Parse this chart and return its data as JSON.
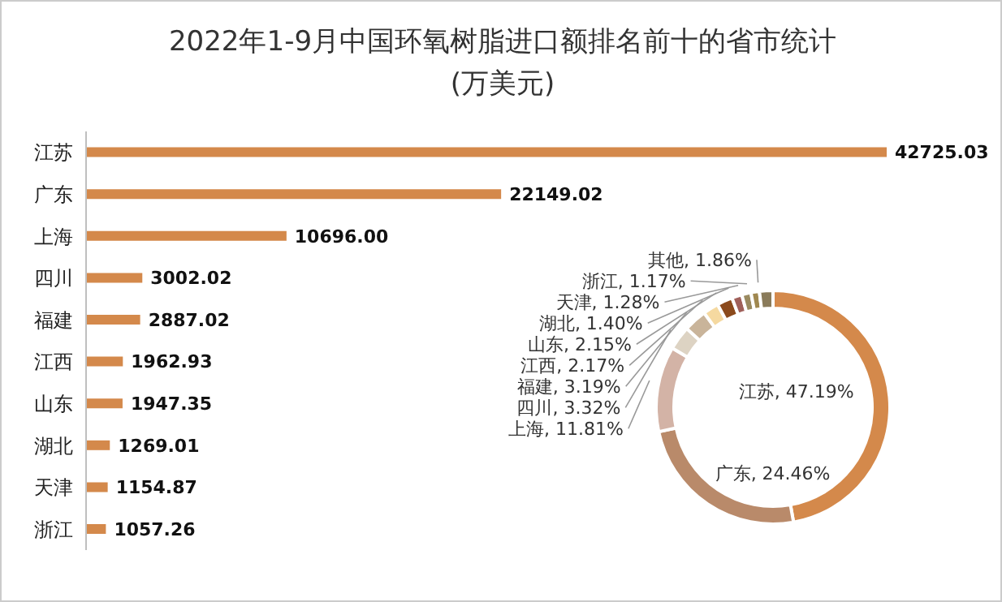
{
  "chart_data": [
    {
      "type": "bar",
      "orientation": "horizontal",
      "title": "2022年1-9月中国环氧树脂进口额排名前十的省市统计",
      "subtitle": "(万美元)",
      "categories": [
        "江苏",
        "广东",
        "上海",
        "四川",
        "福建",
        "江西",
        "山东",
        "湖北",
        "天津",
        "浙江"
      ],
      "values": [
        42725.03,
        22149.02,
        10696.0,
        3002.02,
        2887.02,
        1962.93,
        1947.35,
        1269.01,
        1154.87,
        1057.26
      ],
      "value_labels": [
        "42725.03",
        "22149.02",
        "10696.00",
        "3002.02",
        "2887.02",
        "1962.93",
        "1947.35",
        "1269.01",
        "1154.87",
        "1057.26"
      ],
      "color": "#d4894b"
    },
    {
      "type": "donut",
      "categories": [
        "江苏",
        "广东",
        "上海",
        "四川",
        "福建",
        "江西",
        "山东",
        "湖北",
        "天津",
        "浙江",
        "其他"
      ],
      "values": [
        47.19,
        24.46,
        11.81,
        3.32,
        3.19,
        2.17,
        2.15,
        1.4,
        1.28,
        1.17,
        1.86
      ],
      "value_labels": [
        "47.19%",
        "24.46%",
        "11.81%",
        "3.32%",
        "3.19%",
        "2.17%",
        "2.15%",
        "1.40%",
        "1.28%",
        "1.17%",
        "1.86%"
      ],
      "colors": [
        "#d4894b",
        "#b98a6a",
        "#d3b3a6",
        "#ddd3c3",
        "#c9b49a",
        "#f5d9a0",
        "#8b4a1c",
        "#a0605a",
        "#9a8a60",
        "#a08850",
        "#8a7b5a"
      ]
    }
  ]
}
